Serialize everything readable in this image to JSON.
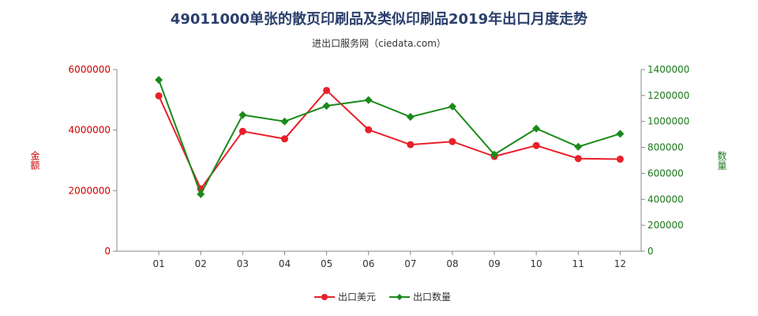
{
  "chart_data": {
    "type": "line",
    "title": "49011000单张的散页印刷品及类似印刷品2019年出口月度走势",
    "subtitle": "进出口服务网（ciedata.com）",
    "categories": [
      "01",
      "02",
      "03",
      "04",
      "05",
      "06",
      "07",
      "08",
      "09",
      "10",
      "11",
      "12"
    ],
    "y_left": {
      "label": "金额",
      "range": [
        0,
        6000000
      ],
      "ticks": [
        "0",
        "2000000",
        "4000000",
        "6000000"
      ],
      "color": "#cc0000"
    },
    "y_right": {
      "label": "数量",
      "range": [
        0,
        1400000
      ],
      "ticks": [
        "0",
        "200000",
        "400000",
        "600000",
        "800000",
        "1000000",
        "1200000",
        "1400000"
      ],
      "color": "#1a7a1a"
    },
    "series": [
      {
        "name": "出口美元",
        "axis": "left",
        "color": "#e8202a",
        "values": [
          5130000,
          2060000,
          3960000,
          3710000,
          5310000,
          4010000,
          3520000,
          3620000,
          3130000,
          3490000,
          3060000,
          3040000
        ]
      },
      {
        "name": "出口数量",
        "axis": "right",
        "color": "#1a8a1a",
        "values": [
          1320000,
          440000,
          1050000,
          1000000,
          1120000,
          1165000,
          1035000,
          1115000,
          745000,
          945000,
          805000,
          905000
        ]
      }
    ],
    "legend_position": "bottom-center",
    "grid": false
  }
}
